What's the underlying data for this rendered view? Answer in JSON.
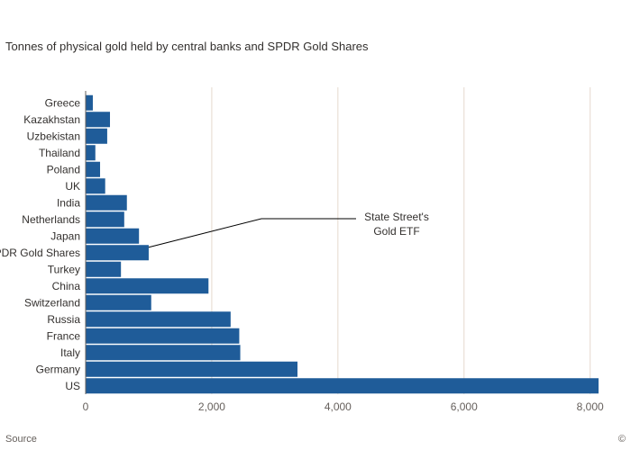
{
  "chart_data": {
    "type": "bar",
    "orientation": "horizontal",
    "title": "Tonnes of physical gold held by central banks and SPDR Gold Shares",
    "categories": [
      "Greece",
      "Kazakhstan",
      "Uzbekistan",
      "Thailand",
      "Poland",
      "UK",
      "India",
      "Netherlands",
      "Japan",
      "SPDR Gold Shares",
      "Turkey",
      "China",
      "Switzerland",
      "Russia",
      "France",
      "Italy",
      "Germany",
      "US"
    ],
    "values": [
      114,
      386,
      342,
      154,
      229,
      310,
      654,
      612,
      846,
      1000,
      560,
      1948,
      1040,
      2299,
      2436,
      2452,
      3359,
      8133
    ],
    "bar_color": "#1f5c99",
    "xlim": [
      0,
      8133
    ],
    "xticks": [
      0,
      2000,
      4000,
      6000,
      8000
    ],
    "xtick_labels": [
      "0",
      "2,000",
      "4,000",
      "6,000",
      "8,000"
    ],
    "grid": "vertical",
    "annotation": {
      "line1": "State Street's",
      "line2": "Gold ETF",
      "target": "SPDR Gold Shares"
    }
  },
  "source_text": "Source",
  "corner_mark": "©"
}
